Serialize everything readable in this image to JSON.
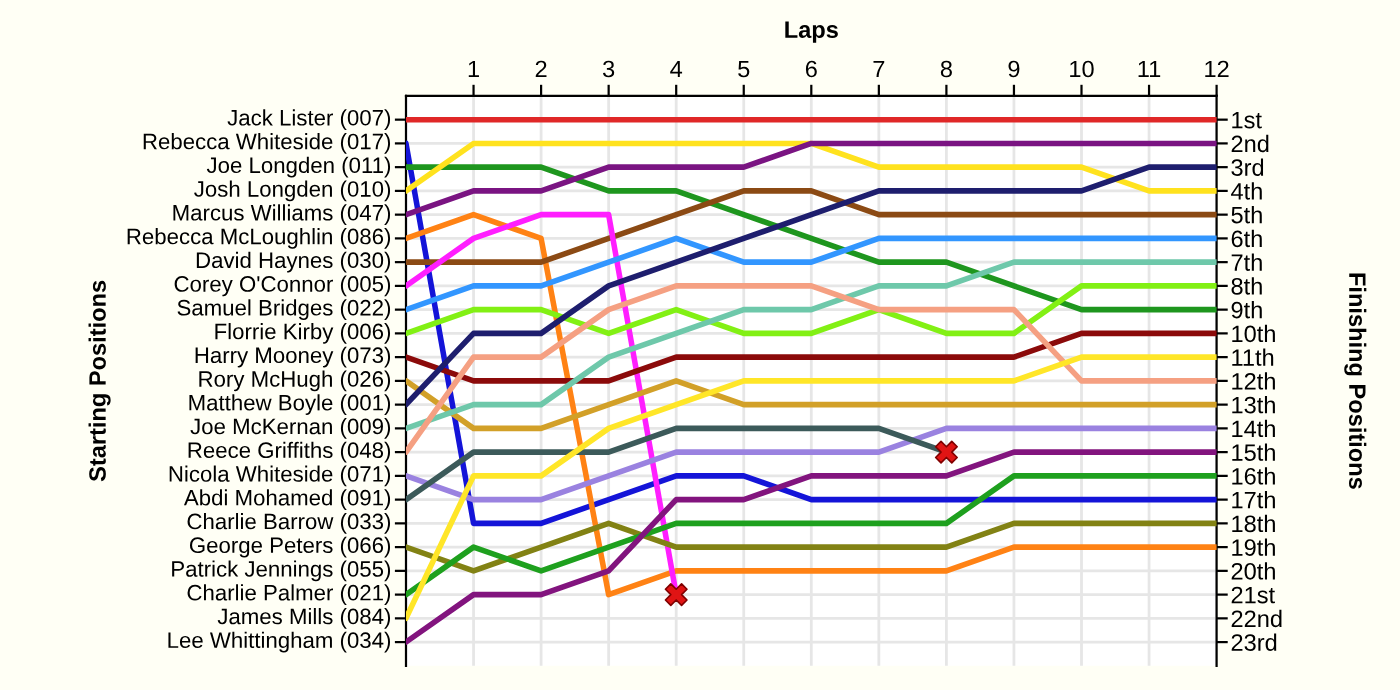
{
  "chart_data": {
    "type": "line",
    "xlabel": "Laps",
    "ylabel": "Finishing Positions",
    "x": [
      0,
      1,
      2,
      3,
      4,
      5,
      6,
      7,
      8,
      9,
      10,
      11,
      12
    ],
    "xlim": [
      0,
      12
    ],
    "xticks": [
      1,
      2,
      3,
      4,
      5,
      6,
      7,
      8,
      9,
      10,
      11,
      12
    ],
    "ylim": [
      24,
      0
    ],
    "yticks": [
      {
        "value": 1,
        "label": "1st"
      },
      {
        "value": 2,
        "label": "2nd"
      },
      {
        "value": 3,
        "label": "3rd"
      },
      {
        "value": 4,
        "label": "4th"
      },
      {
        "value": 5,
        "label": "5th"
      },
      {
        "value": 6,
        "label": "6th"
      },
      {
        "value": 7,
        "label": "7th"
      },
      {
        "value": 8,
        "label": "8th"
      },
      {
        "value": 9,
        "label": "9th"
      },
      {
        "value": 10,
        "label": "10th"
      },
      {
        "value": 11,
        "label": "11th"
      },
      {
        "value": 12,
        "label": "12th"
      },
      {
        "value": 13,
        "label": "13th"
      },
      {
        "value": 14,
        "label": "14th"
      },
      {
        "value": 15,
        "label": "15th"
      },
      {
        "value": 16,
        "label": "16th"
      },
      {
        "value": 17,
        "label": "17th"
      },
      {
        "value": 18,
        "label": "18th"
      },
      {
        "value": 19,
        "label": "19th"
      },
      {
        "value": 20,
        "label": "20th"
      },
      {
        "value": 21,
        "label": "21st"
      },
      {
        "value": 22,
        "label": "22nd"
      },
      {
        "value": 23,
        "label": "23rd"
      }
    ],
    "grid": true,
    "line_style": "solid",
    "annotations": [
      "Starting Positions",
      "Charlie Barrow (033)",
      "Patrick Jennings (055)"
    ],
    "series": [
      {
        "name": "Jack Lister (007)",
        "color": "#e02828",
        "values": [
          1,
          1,
          1,
          1,
          1,
          1,
          1,
          1,
          1,
          1,
          1,
          1,
          1
        ]
      },
      {
        "name": "Rebecca Whiteside (017)",
        "color": "#1414d8",
        "values": [
          2,
          18,
          18,
          17,
          16,
          16,
          17,
          17,
          17,
          17,
          17,
          17,
          17
        ]
      },
      {
        "name": "Joe Longden (011)",
        "color": "#1e961e",
        "values": [
          3,
          3,
          3,
          4,
          4,
          5,
          6,
          7,
          7,
          8,
          9,
          9,
          9
        ]
      },
      {
        "name": "Josh Longden (010)",
        "color": "#ffe21e",
        "values": [
          4,
          2,
          2,
          2,
          2,
          2,
          2,
          3,
          3,
          3,
          3,
          4,
          4
        ]
      },
      {
        "name": "Marcus Williams (047)",
        "color": "#7a1482",
        "values": [
          5,
          4,
          4,
          3,
          3,
          3,
          2,
          2,
          2,
          2,
          2,
          2,
          2
        ]
      },
      {
        "name": "Rebecca McLoughlin (086)",
        "color": "#ff8214",
        "values": [
          6,
          5,
          6,
          21,
          20,
          20,
          20,
          20,
          20,
          19,
          19,
          19,
          19
        ]
      },
      {
        "name": "David Haynes (030)",
        "color": "#8b4a14",
        "values": [
          7,
          7,
          7,
          6,
          5,
          4,
          4,
          5,
          5,
          5,
          5,
          5,
          5
        ]
      },
      {
        "name": "Corey O'Connor (005)",
        "color": "#ff1eff",
        "values": [
          8,
          6,
          5,
          5,
          21,
          null,
          null,
          null,
          null,
          null,
          null,
          null,
          null
        ]
      },
      {
        "name": "Samuel Bridges (022)",
        "color": "#3296ff",
        "values": [
          9,
          8,
          8,
          7,
          6,
          7,
          7,
          6,
          6,
          6,
          6,
          6,
          6
        ]
      },
      {
        "name": "Florrie Kirby (006)",
        "color": "#82f014",
        "values": [
          10,
          9,
          9,
          10,
          9,
          10,
          10,
          9,
          10,
          10,
          8,
          8,
          8
        ]
      },
      {
        "name": "Harry Mooney (073)",
        "color": "#8b0a0a",
        "values": [
          11,
          12,
          12,
          12,
          11,
          11,
          11,
          11,
          11,
          11,
          10,
          10,
          10
        ]
      },
      {
        "name": "Rory McHugh (026)",
        "color": "#d2a028",
        "values": [
          12,
          14,
          14,
          13,
          12,
          13,
          13,
          13,
          13,
          13,
          13,
          13,
          13
        ]
      },
      {
        "name": "Matthew Boyle (001)",
        "color": "#1e1e6e",
        "values": [
          13,
          10,
          10,
          8,
          7,
          6,
          5,
          4,
          4,
          4,
          4,
          3,
          3
        ]
      },
      {
        "name": "Joe McKernan (009)",
        "color": "#6ec8aa",
        "values": [
          14,
          13,
          13,
          11,
          10,
          9,
          9,
          8,
          8,
          7,
          7,
          7,
          7
        ]
      },
      {
        "name": "Reece Griffiths (048)",
        "color": "#f5a082",
        "values": [
          15,
          11,
          11,
          9,
          8,
          8,
          8,
          9,
          9,
          9,
          12,
          12,
          12
        ]
      },
      {
        "name": "Nicola Whiteside (071)",
        "color": "#9a82e0",
        "values": [
          16,
          17,
          17,
          16,
          15,
          15,
          15,
          15,
          14,
          14,
          14,
          14,
          14
        ]
      },
      {
        "name": "Abdi Mohamed (091)",
        "color": "#3c5a5a",
        "values": [
          17,
          15,
          15,
          15,
          14,
          14,
          14,
          14,
          15,
          null,
          null,
          null,
          null
        ]
      },
      {
        "name": "George Peters (066)",
        "color": "#828214",
        "values": [
          19,
          20,
          19,
          18,
          19,
          19,
          19,
          19,
          19,
          18,
          18,
          18,
          18
        ]
      },
      {
        "name": "Charlie Palmer (021)",
        "color": "#1ea01e",
        "values": [
          21,
          19,
          20,
          19,
          18,
          18,
          18,
          18,
          18,
          16,
          16,
          16,
          16
        ]
      },
      {
        "name": "James Mills (084)",
        "color": "#ffe628",
        "values": [
          22,
          16,
          16,
          14,
          13,
          12,
          12,
          12,
          12,
          12,
          11,
          11,
          11
        ]
      },
      {
        "name": "Lee Whittingham (034)",
        "color": "#82147e",
        "values": [
          23,
          21,
          21,
          20,
          17,
          17,
          16,
          16,
          16,
          15,
          15,
          15,
          15
        ]
      },
      {
        "type": "scatter",
        "marker": "cross",
        "color": "#e01414",
        "x": [
          4,
          8
        ],
        "values": [
          21,
          15
        ]
      }
    ]
  }
}
